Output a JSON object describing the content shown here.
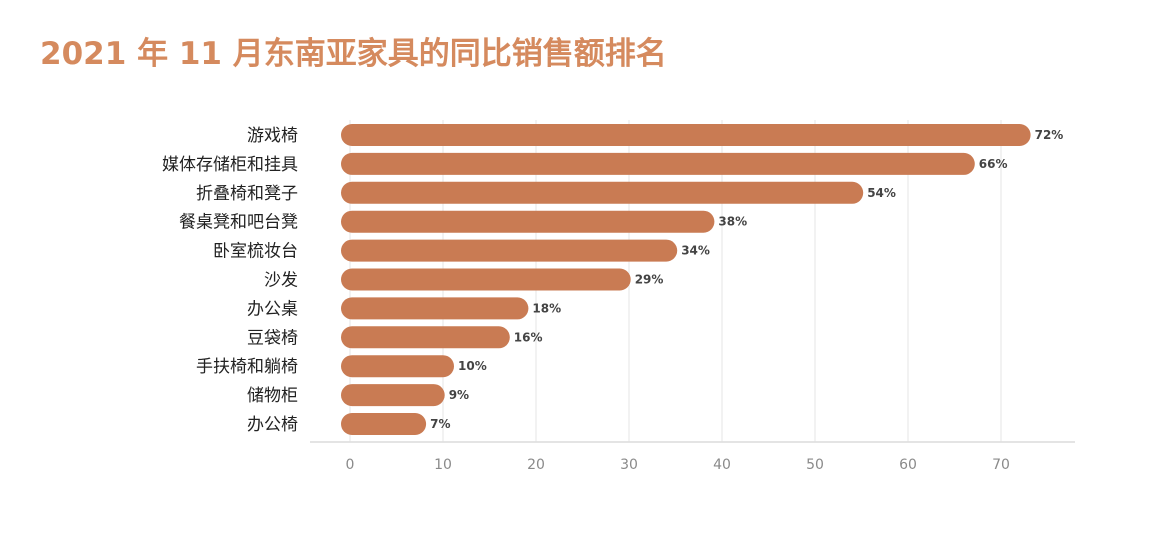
{
  "chart_data": {
    "type": "bar",
    "orientation": "horizontal",
    "title": "2021 年 11 月东南亚家具的同比销售额排名",
    "categories": [
      "游戏椅",
      "媒体存储柜和挂具",
      "折叠椅和凳子",
      "餐桌凳和吧台凳",
      "卧室梳妆台",
      "沙发",
      "办公桌",
      "豆袋椅",
      "手扶椅和躺椅",
      "储物柜",
      "办公椅"
    ],
    "values": [
      72,
      66,
      54,
      38,
      34,
      29,
      18,
      16,
      10,
      9,
      7
    ],
    "value_labels": [
      "72%",
      "66%",
      "54%",
      "38%",
      "34%",
      "29%",
      "18%",
      "16%",
      "10%",
      "9%",
      "7%"
    ],
    "xticks": [
      "0",
      "10",
      "20",
      "30",
      "40",
      "50",
      "60",
      "70"
    ],
    "xlim": [
      0,
      75
    ],
    "xlabel": "",
    "ylabel": "",
    "grid": true,
    "bar_color": "#c97b53",
    "title_color": "#d58a5e"
  }
}
